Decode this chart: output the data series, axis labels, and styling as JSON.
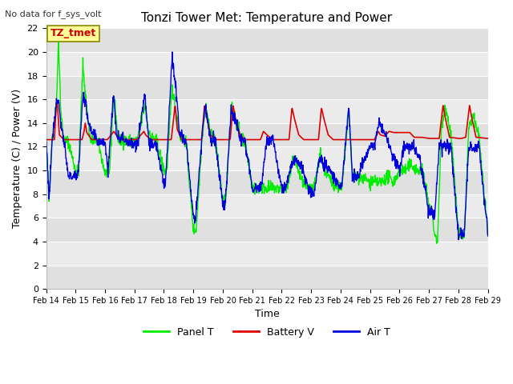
{
  "title": "Tonzi Tower Met: Temperature and Power",
  "xlabel": "Time",
  "ylabel": "Temperature (C) / Power (V)",
  "top_left_text": "No data for f_sys_volt",
  "legend_label_text": "TZ_tmet",
  "ylim": [
    0,
    22
  ],
  "yticks": [
    0,
    2,
    4,
    6,
    8,
    10,
    12,
    14,
    16,
    18,
    20,
    22
  ],
  "xtick_labels": [
    "Feb 14",
    "Feb 15",
    "Feb 16",
    "Feb 17",
    "Feb 18",
    "Feb 19",
    "Feb 20",
    "Feb 21",
    "Feb 22",
    "Feb 23",
    "Feb 24",
    "Feb 25",
    "Feb 26",
    "Feb 27",
    "Feb 28",
    "Feb 29"
  ],
  "fig_bg": "#ffffff",
  "plot_bg": "#e8e8e8",
  "grid_color": "#ffffff",
  "line_colors": {
    "panel": "#00ee00",
    "battery": "#dd0000",
    "air": "#0000dd"
  },
  "legend_entries": [
    "Panel T",
    "Battery V",
    "Air T"
  ],
  "legend_colors": [
    "#00ee00",
    "#dd0000",
    "#0000dd"
  ],
  "tztmet_color": "#cc0000",
  "tztmet_bg": "#ffff99",
  "tztmet_edge": "#888800"
}
